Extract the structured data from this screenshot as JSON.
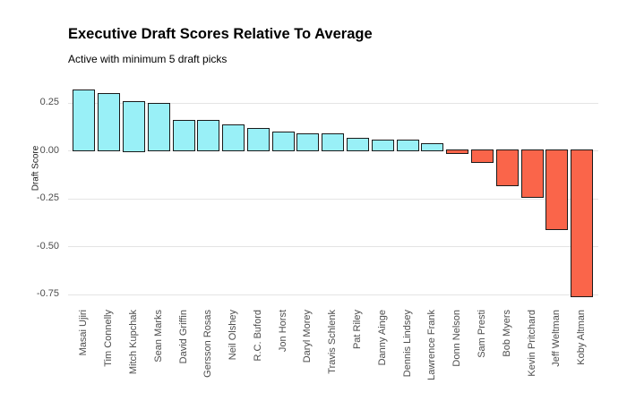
{
  "header": {
    "title": "Executive Draft Scores Relative To Average",
    "subtitle": "Active with minimum 5 draft picks"
  },
  "axes": {
    "y_label": "Draft Score",
    "y_ticks": [
      "0.25",
      "0.00",
      "-0.25",
      "-0.50",
      "-0.75"
    ]
  },
  "chart_data": {
    "type": "bar",
    "title": "Executive Draft Scores Relative To Average",
    "subtitle": "Active with minimum 5 draft picks",
    "xlabel": "",
    "ylabel": "Draft Score",
    "categories": [
      "Masai Ujiri",
      "Tim Connelly",
      "Mitch Kupchak",
      "Sean Marks",
      "David Griffin",
      "Gersson Rosas",
      "Neil Olshey",
      "R.C. Buford",
      "Jon Horst",
      "Daryl Morey",
      "Travis Schlenk",
      "Pat Riley",
      "Danny Ainge",
      "Dennis Lindsey",
      "Lawrence Frank",
      "Donn Nelson",
      "Sam Presti",
      "Bob Myers",
      "Kevin Pritchard",
      "Jeff Weltman",
      "Koby Altman"
    ],
    "values": [
      0.31,
      0.29,
      0.25,
      0.24,
      0.15,
      0.15,
      0.13,
      0.11,
      0.09,
      0.08,
      0.08,
      0.06,
      0.05,
      0.05,
      0.03,
      -0.01,
      -0.06,
      -0.18,
      -0.24,
      -0.41,
      -0.76
    ],
    "yticks": [
      0.25,
      0.0,
      -0.25,
      -0.5,
      -0.75
    ],
    "ylim": [
      -0.8,
      0.35
    ],
    "grid": "horizontal-major-only",
    "legend": "none",
    "bar_orientation": "vertical",
    "x_label_rotation_deg": 90,
    "colors": {
      "positive_fill": "#99F0F7",
      "negative_fill": "#FA654A",
      "bar_border": "#1A1A1A",
      "gridline": "#E4E4E4",
      "axis_text": "#4D4D4D",
      "title_text": "#000000",
      "background": "#FFFFFF"
    }
  }
}
